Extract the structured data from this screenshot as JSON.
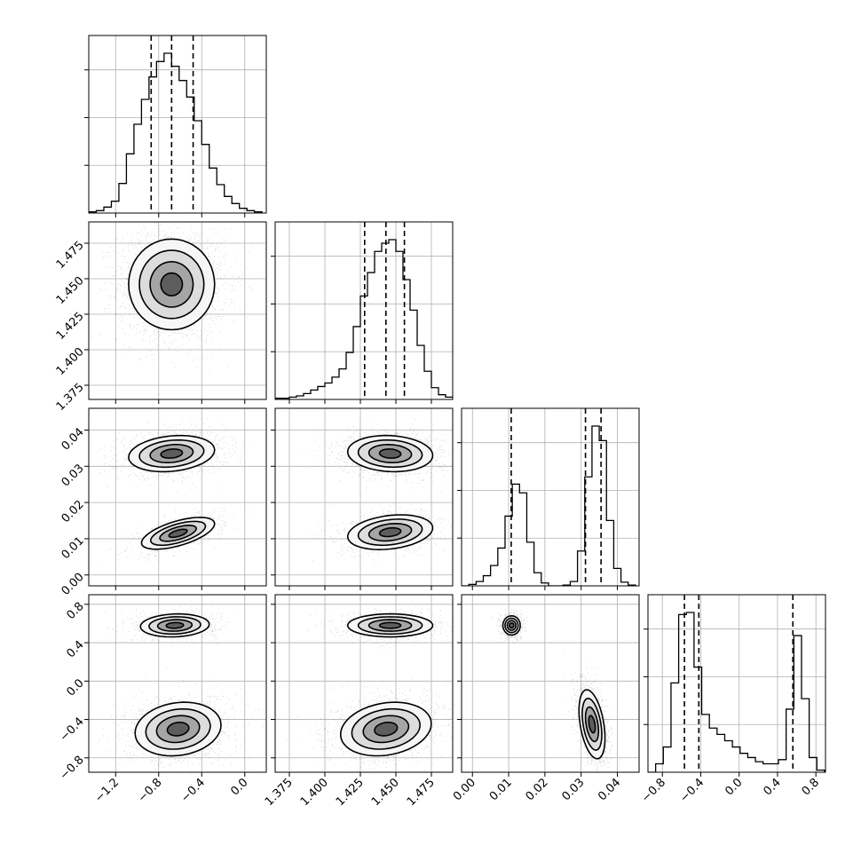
{
  "chart_data": {
    "type": "corner",
    "parameters": 4,
    "grid": true,
    "colors": {
      "points": "#000000",
      "lines": "#000000",
      "grid": "#b0b0b0"
    },
    "axes": [
      {
        "range": [
          -1.45,
          0.2
        ],
        "ticks": [
          -1.2,
          -0.8,
          -0.4,
          0.0
        ],
        "tick_labels": [
          "−1.2",
          "−0.8",
          "−0.4",
          "0.0"
        ]
      },
      {
        "range": [
          1.365,
          1.49
        ],
        "ticks": [
          1.375,
          1.4,
          1.425,
          1.45,
          1.475
        ],
        "tick_labels": [
          "1.375",
          "1.400",
          "1.425",
          "1.450",
          "1.475"
        ]
      },
      {
        "range": [
          -0.003,
          0.046
        ],
        "ticks": [
          0.0,
          0.01,
          0.02,
          0.03,
          0.04
        ],
        "tick_labels": [
          "0.00",
          "0.01",
          "0.02",
          "0.03",
          "0.04"
        ]
      },
      {
        "range": [
          -0.95,
          0.9
        ],
        "ticks": [
          -0.8,
          -0.4,
          0.0,
          0.4,
          0.8
        ],
        "tick_labels": [
          "−0.8",
          "−0.4",
          "0.0",
          "0.4",
          "0.8"
        ]
      }
    ],
    "histograms": [
      {
        "param": 0,
        "bins": [
          -1.45,
          -1.38,
          -1.31,
          -1.24,
          -1.17,
          -1.1,
          -1.03,
          -0.96,
          -0.89,
          -0.82,
          -0.75,
          -0.68,
          -0.61,
          -0.54,
          -0.47,
          -0.4,
          -0.33,
          -0.26,
          -0.19,
          -0.12,
          -0.05,
          0.02,
          0.09,
          0.16
        ],
        "counts": [
          1,
          2,
          5,
          10,
          25,
          50,
          75,
          96,
          115,
          128,
          135,
          124,
          112,
          98,
          78,
          58,
          38,
          24,
          14,
          8,
          4,
          2,
          1
        ],
        "quantiles": [
          -0.87,
          -0.68,
          -0.48
        ]
      },
      {
        "param": 1,
        "bins": [
          1.365,
          1.37,
          1.375,
          1.38,
          1.385,
          1.39,
          1.395,
          1.4,
          1.405,
          1.41,
          1.415,
          1.42,
          1.425,
          1.43,
          1.435,
          1.44,
          1.445,
          1.45,
          1.455,
          1.46,
          1.465,
          1.47,
          1.475,
          1.48,
          1.485,
          1.49
        ],
        "counts": [
          1,
          1,
          2,
          3,
          5,
          8,
          11,
          14,
          19,
          26,
          40,
          62,
          88,
          108,
          126,
          133,
          136,
          126,
          102,
          76,
          46,
          24,
          10,
          4,
          2
        ],
        "quantiles": [
          1.428,
          1.443,
          1.456
        ]
      },
      {
        "param": 2,
        "bins": [
          -0.003,
          -0.001,
          0.001,
          0.003,
          0.005,
          0.007,
          0.009,
          0.011,
          0.013,
          0.015,
          0.017,
          0.019,
          0.021,
          0.023,
          0.025,
          0.027,
          0.029,
          0.031,
          0.033,
          0.035,
          0.037,
          0.039,
          0.041,
          0.043,
          0.045
        ],
        "counts": [
          0,
          2,
          6,
          14,
          28,
          52,
          96,
          140,
          128,
          60,
          18,
          4,
          0,
          0,
          1,
          6,
          48,
          150,
          220,
          200,
          90,
          24,
          5,
          1
        ],
        "quantiles": [
          0.0107,
          0.0312,
          0.0355
        ]
      },
      {
        "param": 3,
        "bins": [
          -0.95,
          -0.87,
          -0.79,
          -0.71,
          -0.63,
          -0.55,
          -0.47,
          -0.39,
          -0.31,
          -0.23,
          -0.15,
          -0.07,
          0.01,
          0.09,
          0.17,
          0.25,
          0.33,
          0.41,
          0.49,
          0.57,
          0.65,
          0.73,
          0.81,
          0.89
        ],
        "counts": [
          0,
          8,
          24,
          85,
          150,
          152,
          100,
          55,
          42,
          36,
          30,
          24,
          18,
          14,
          10,
          8,
          8,
          12,
          60,
          130,
          70,
          14,
          2
        ],
        "quantiles": [
          -0.57,
          -0.42,
          0.56
        ]
      }
    ],
    "pairs": [
      {
        "x": 0,
        "y": 1,
        "modes": [
          {
            "cx": -0.68,
            "cy": 1.446,
            "sx": 0.2,
            "sy": 0.016,
            "rho": 0.0,
            "w": 1.0
          }
        ]
      },
      {
        "x": 0,
        "y": 2,
        "modes": [
          {
            "cx": -0.68,
            "cy": 0.0335,
            "sx": 0.2,
            "sy": 0.0025,
            "rho": 0.2,
            "w": 0.65
          },
          {
            "cx": -0.62,
            "cy": 0.0115,
            "sx": 0.17,
            "sy": 0.0022,
            "rho": 0.6,
            "w": 0.35
          }
        ]
      },
      {
        "x": 0,
        "y": 3,
        "modes": [
          {
            "cx": -0.65,
            "cy": 0.58,
            "sx": 0.16,
            "sy": 0.06,
            "rho": 0.1,
            "w": 0.35
          },
          {
            "cx": -0.62,
            "cy": -0.5,
            "sx": 0.2,
            "sy": 0.14,
            "rho": 0.15,
            "w": 0.65
          }
        ]
      },
      {
        "x": 1,
        "y": 2,
        "modes": [
          {
            "cx": 1.446,
            "cy": 0.0335,
            "sx": 0.015,
            "sy": 0.0025,
            "rho": -0.1,
            "w": 0.65
          },
          {
            "cx": 1.446,
            "cy": 0.0118,
            "sx": 0.015,
            "sy": 0.0024,
            "rho": 0.25,
            "w": 0.35
          }
        ]
      },
      {
        "x": 1,
        "y": 3,
        "modes": [
          {
            "cx": 1.446,
            "cy": 0.58,
            "sx": 0.015,
            "sy": 0.06,
            "rho": 0.0,
            "w": 0.35
          },
          {
            "cx": 1.443,
            "cy": -0.5,
            "sx": 0.016,
            "sy": 0.14,
            "rho": 0.2,
            "w": 0.65
          }
        ]
      },
      {
        "x": 2,
        "y": 3,
        "modes": [
          {
            "cx": 0.0108,
            "cy": 0.58,
            "sx": 0.0012,
            "sy": 0.05,
            "rho": 0.0,
            "w": 0.35
          },
          {
            "cx": 0.033,
            "cy": -0.45,
            "sx": 0.0018,
            "sy": 0.18,
            "rho": -0.4,
            "w": 0.65
          }
        ]
      }
    ]
  }
}
